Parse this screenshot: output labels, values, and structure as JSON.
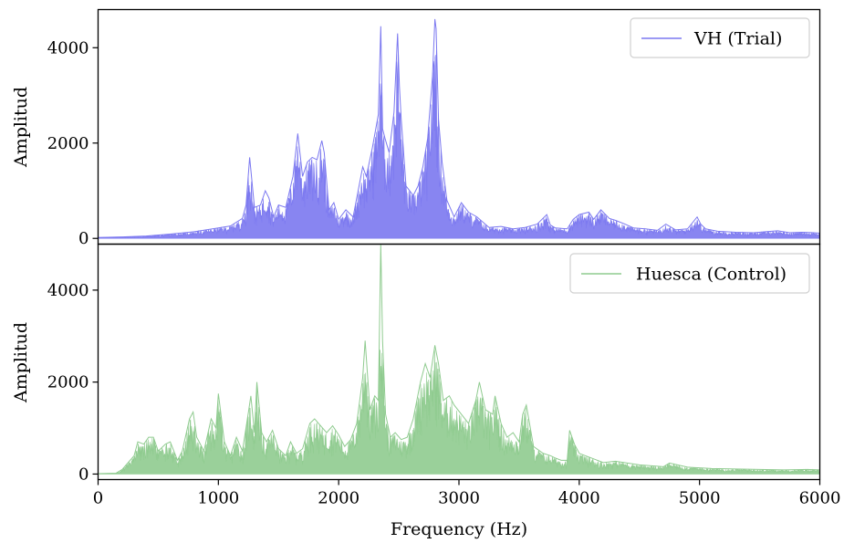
{
  "chart_data": [
    {
      "type": "area",
      "subplot": "top",
      "legend": {
        "label": "VH (Trial)",
        "placement": "top-right"
      },
      "color": "#7b78f0",
      "ylabel": "Amplitud",
      "xlabel": "",
      "xlim": [
        0,
        6000
      ],
      "ylim": [
        -120,
        4800
      ],
      "yticks": [
        0,
        2000,
        4000
      ],
      "ytick_labels": [
        "0",
        "2000",
        "4000"
      ],
      "grid": false,
      "series": [
        {
          "name": "VH (Trial)",
          "envelope_x": [
            0,
            200,
            400,
            600,
            800,
            1000,
            1100,
            1200,
            1230,
            1260,
            1300,
            1350,
            1390,
            1420,
            1460,
            1500,
            1560,
            1620,
            1660,
            1700,
            1740,
            1780,
            1820,
            1860,
            1880,
            1920,
            1960,
            2000,
            2060,
            2120,
            2200,
            2230,
            2280,
            2330,
            2350,
            2365,
            2385,
            2420,
            2460,
            2490,
            2505,
            2520,
            2560,
            2620,
            2660,
            2700,
            2740,
            2780,
            2800,
            2810,
            2830,
            2860,
            2900,
            2960,
            3020,
            3080,
            3150,
            3250,
            3350,
            3450,
            3550,
            3650,
            3730,
            3760,
            3800,
            3900,
            3950,
            4000,
            4080,
            4120,
            4180,
            4250,
            4300,
            4380,
            4450,
            4550,
            4650,
            4720,
            4800,
            4900,
            4980,
            5010,
            5050,
            5150,
            5300,
            5450,
            5550,
            5650,
            5750,
            5850,
            5950,
            6000
          ],
          "envelope_y": [
            20,
            30,
            50,
            90,
            140,
            220,
            260,
            420,
            700,
            1700,
            650,
            700,
            1000,
            850,
            450,
            700,
            650,
            1300,
            2200,
            1300,
            1600,
            1700,
            1650,
            2050,
            1800,
            600,
            750,
            400,
            600,
            450,
            1500,
            1300,
            1900,
            2600,
            4450,
            2300,
            2100,
            1800,
            2650,
            4300,
            3200,
            2500,
            1100,
            900,
            1100,
            1500,
            2100,
            3400,
            4600,
            4400,
            2500,
            1600,
            800,
            450,
            750,
            550,
            450,
            230,
            250,
            200,
            230,
            300,
            500,
            280,
            220,
            200,
            400,
            500,
            550,
            400,
            600,
            420,
            380,
            300,
            220,
            200,
            170,
            300,
            180,
            200,
            450,
            300,
            200,
            150,
            130,
            120,
            140,
            160,
            120,
            130,
            120,
            110
          ]
        }
      ]
    },
    {
      "type": "area",
      "subplot": "bottom",
      "legend": {
        "label": "Huesca (Control)",
        "placement": "top-right"
      },
      "color": "#8fcb8f",
      "ylabel": "Amplitud",
      "xlabel": "Frequency (Hz)",
      "xlim": [
        0,
        6000
      ],
      "ylim": [
        -120,
        5000
      ],
      "yticks": [
        0,
        2000,
        4000
      ],
      "ytick_labels": [
        "0",
        "2000",
        "4000"
      ],
      "xticks": [
        0,
        1000,
        2000,
        3000,
        4000,
        5000,
        6000
      ],
      "xtick_labels": [
        "0",
        "1000",
        "2000",
        "3000",
        "4000",
        "5000",
        "6000"
      ],
      "grid": false,
      "series": [
        {
          "name": "Huesca (Control)",
          "envelope_x": [
            0,
            150,
            200,
            250,
            300,
            330,
            380,
            420,
            460,
            500,
            560,
            600,
            660,
            700,
            760,
            790,
            820,
            880,
            940,
            980,
            1000,
            1050,
            1100,
            1150,
            1200,
            1250,
            1270,
            1300,
            1320,
            1360,
            1400,
            1450,
            1500,
            1560,
            1600,
            1650,
            1700,
            1760,
            1800,
            1850,
            1900,
            1950,
            2000,
            2050,
            2100,
            2150,
            2200,
            2220,
            2260,
            2300,
            2330,
            2350,
            2365,
            2390,
            2430,
            2470,
            2520,
            2570,
            2620,
            2680,
            2720,
            2760,
            2800,
            2830,
            2870,
            2920,
            2960,
            3020,
            3080,
            3140,
            3170,
            3220,
            3280,
            3300,
            3350,
            3400,
            3450,
            3500,
            3530,
            3560,
            3620,
            3700,
            3760,
            3800,
            3850,
            3900,
            3920,
            3960,
            4000,
            4100,
            4200,
            4300,
            4500,
            4700,
            4750,
            4900,
            5100,
            5300,
            5500,
            5700,
            5900,
            6000
          ],
          "envelope_y": [
            10,
            20,
            100,
            250,
            400,
            700,
            650,
            800,
            800,
            500,
            650,
            700,
            300,
            500,
            1200,
            1350,
            800,
            500,
            1200,
            1000,
            1750,
            700,
            400,
            800,
            500,
            1350,
            1700,
            900,
            2000,
            900,
            700,
            950,
            550,
            400,
            700,
            450,
            550,
            1100,
            1200,
            1050,
            900,
            1050,
            850,
            600,
            750,
            1100,
            2100,
            2900,
            1400,
            1700,
            1600,
            5000,
            2900,
            1300,
            800,
            900,
            750,
            800,
            1200,
            2000,
            2400,
            2100,
            2800,
            2400,
            1600,
            1700,
            1500,
            1300,
            1100,
            1600,
            2000,
            1400,
            1300,
            1700,
            1100,
            800,
            900,
            700,
            1300,
            1500,
            600,
            450,
            400,
            350,
            300,
            300,
            950,
            650,
            450,
            350,
            250,
            280,
            200,
            160,
            240,
            150,
            120,
            110,
            100,
            90,
            100,
            90
          ]
        }
      ]
    }
  ]
}
